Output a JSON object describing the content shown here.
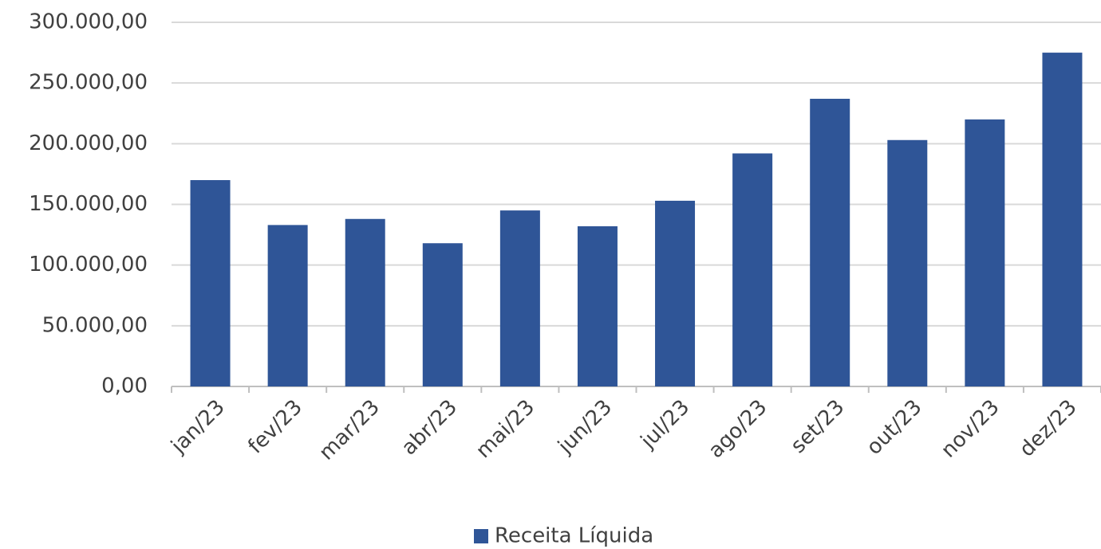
{
  "chart_data": {
    "type": "bar",
    "categories": [
      "jan/23",
      "fev/23",
      "mar/23",
      "abr/23",
      "mai/23",
      "jun/23",
      "jul/23",
      "ago/23",
      "set/23",
      "out/23",
      "nov/23",
      "dez/23"
    ],
    "series": [
      {
        "name": "Receita Líquida",
        "color": "#2f5597",
        "values": [
          170000,
          133000,
          138000,
          118000,
          145000,
          132000,
          153000,
          192000,
          237000,
          203000,
          220000,
          275000
        ]
      }
    ],
    "ylim": [
      0,
      300000
    ],
    "yticks": [
      {
        "value": 0,
        "label": "0,00"
      },
      {
        "value": 50000,
        "label": "50.000,00"
      },
      {
        "value": 100000,
        "label": "100.000,00"
      },
      {
        "value": 150000,
        "label": "150.000,00"
      },
      {
        "value": 200000,
        "label": "200.000,00"
      },
      {
        "value": 250000,
        "label": "250.000,00"
      },
      {
        "value": 300000,
        "label": "300.000,00"
      }
    ],
    "grid": true,
    "legend": "bottom"
  }
}
